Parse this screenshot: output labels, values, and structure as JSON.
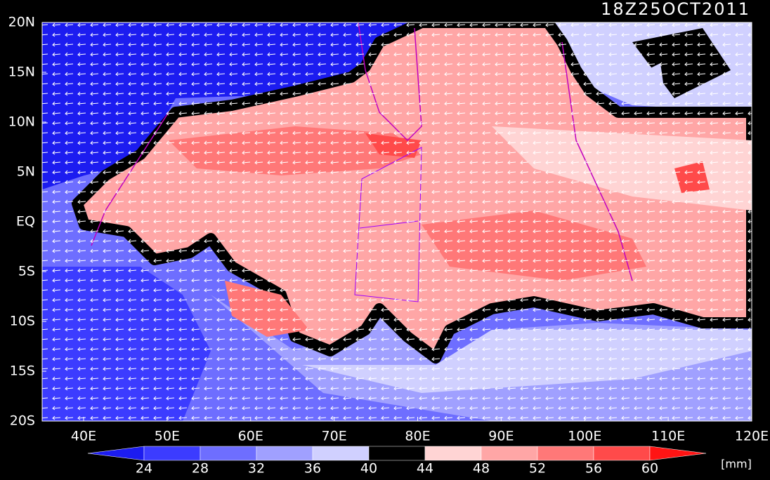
{
  "title": "18Z25OCT2011",
  "lat_labels": [
    "20N",
    "15N",
    "10N",
    "5N",
    "EQ",
    "5S",
    "10S",
    "15S",
    "20S"
  ],
  "lon_labels": [
    "40E",
    "50E",
    "60E",
    "70E",
    "80E",
    "90E",
    "100E",
    "110E",
    "120E"
  ],
  "colorbar": {
    "levels": [
      24,
      28,
      32,
      36,
      40,
      44,
      48,
      52,
      56,
      60
    ],
    "colors": [
      "#1c1cf0",
      "#3c3cff",
      "#6e6eff",
      "#a0a0ff",
      "#d0d0ff",
      "#000000",
      "#ffd4d4",
      "#ffa6a6",
      "#ff7878",
      "#ff4a4a",
      "#ff1414"
    ],
    "unit": "[mm]"
  }
}
